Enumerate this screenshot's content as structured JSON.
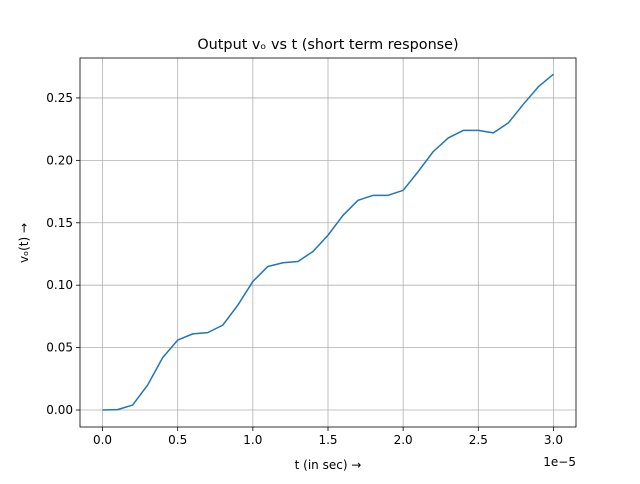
{
  "chart_data": {
    "type": "line",
    "title": "Output vₒ vs t (short term response)",
    "x_label": "t (in sec) →",
    "y_label": "vₒ(t) →",
    "x_offset_label": "1e−5",
    "x": [
      0,
      0.1,
      0.2,
      0.3,
      0.4,
      0.5,
      0.6,
      0.7,
      0.8,
      0.9,
      1.0,
      1.1,
      1.2,
      1.3,
      1.4,
      1.5,
      1.6,
      1.7,
      1.8,
      1.9,
      2.0,
      2.1,
      2.2,
      2.3,
      2.4,
      2.5,
      2.6,
      2.7,
      2.8,
      2.9,
      3.0
    ],
    "series": [
      {
        "color": "#1f77b4",
        "values": [
          0,
          0.0003,
          0.004,
          0.02,
          0.042,
          0.056,
          0.061,
          0.062,
          0.068,
          0.084,
          0.103,
          0.115,
          0.118,
          0.119,
          0.127,
          0.14,
          0.156,
          0.168,
          0.172,
          0.172,
          0.176,
          0.191,
          0.207,
          0.218,
          0.224,
          0.224,
          0.222,
          0.23,
          0.245,
          0.259,
          0.269
        ]
      }
    ],
    "xlim": [
      -0.15,
      3.15
    ],
    "ylim": [
      -0.0136,
      0.282
    ],
    "xticks": [
      {
        "value": 0,
        "label": "0.0"
      },
      {
        "value": 0.5,
        "label": "0.5"
      },
      {
        "value": 1,
        "label": "1.0"
      },
      {
        "value": 1.5,
        "label": "1.5"
      },
      {
        "value": 2,
        "label": "2.0"
      },
      {
        "value": 2.5,
        "label": "2.5"
      },
      {
        "value": 3,
        "label": "3.0"
      }
    ],
    "yticks": [
      {
        "value": 0,
        "label": "0.00"
      },
      {
        "value": 0.05,
        "label": "0.05"
      },
      {
        "value": 0.1,
        "label": "0.10"
      },
      {
        "value": 0.15,
        "label": "0.15"
      },
      {
        "value": 0.2,
        "label": "0.20"
      },
      {
        "value": 0.25,
        "label": "0.25"
      }
    ],
    "grid": true
  }
}
